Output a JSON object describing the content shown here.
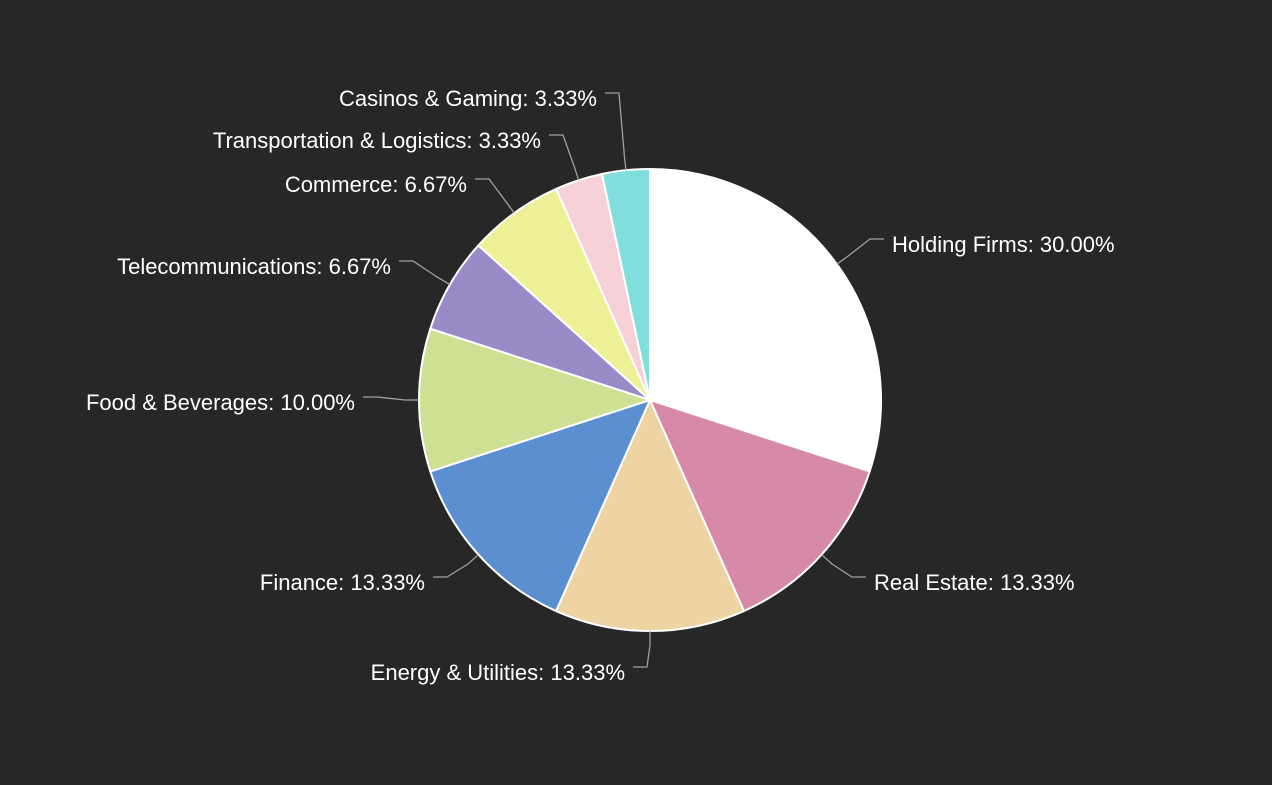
{
  "chart_data": {
    "type": "pie",
    "start_angle_deg": 0,
    "direction": "clockwise",
    "slice_border_color": "#ffffff",
    "leader_line_color": "#a0a0a0",
    "background_color": "#272727",
    "label_color": "#ffffff",
    "slices": [
      {
        "label": "Holding Firms: 30.00%",
        "value": 30.0,
        "color": "#ffffff"
      },
      {
        "label": "Real Estate: 13.33%",
        "value": 13.33,
        "color": "#d78aa8"
      },
      {
        "label": "Energy & Utilities: 13.33%",
        "value": 13.33,
        "color": "#eed4a2"
      },
      {
        "label": "Finance: 13.33%",
        "value": 13.33,
        "color": "#5b8fd0"
      },
      {
        "label": "Food & Beverages: 10.00%",
        "value": 10.0,
        "color": "#cde094"
      },
      {
        "label": "Telecommunications: 6.67%",
        "value": 6.67,
        "color": "#9a8bc8"
      },
      {
        "label": "Commerce: 6.67%",
        "value": 6.67,
        "color": "#eef097"
      },
      {
        "label": "Transportation & Logistics: 3.33%",
        "value": 3.33,
        "color": "#f6d1d8"
      },
      {
        "label": "Casinos & Gaming: 3.33%",
        "value": 3.33,
        "color": "#80dfdc"
      }
    ]
  }
}
